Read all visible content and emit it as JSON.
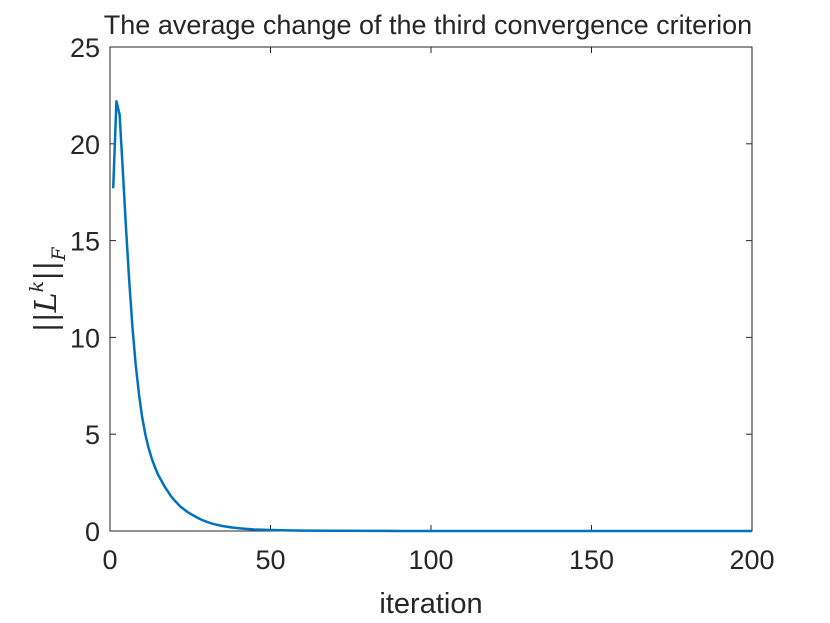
{
  "chart_data": {
    "type": "line",
    "title": "The average change of the third convergence criterion",
    "xlabel": "iteration",
    "ylabel": {
      "norm_open": "||",
      "base": "L",
      "superscript": "k",
      "norm_close": "||",
      "subscript": "F"
    },
    "xlim": [
      0,
      200
    ],
    "ylim": [
      0,
      25
    ],
    "xticks": [
      0,
      50,
      100,
      150,
      200
    ],
    "yticks": [
      0,
      5,
      10,
      15,
      20,
      25
    ],
    "grid": false,
    "line_color": "#0072BD",
    "series": [
      {
        "x": [
          1,
          2,
          3,
          4,
          5,
          6,
          7,
          8,
          9,
          10,
          11,
          12,
          13,
          14,
          15,
          16,
          17,
          18,
          19,
          20,
          22,
          24,
          26,
          28,
          30,
          32,
          35,
          38,
          41,
          45,
          50,
          55,
          60,
          70,
          80,
          90,
          100,
          120,
          150,
          200
        ],
        "y": [
          17.7,
          22.2,
          21.5,
          18.6,
          15.6,
          12.9,
          10.5,
          8.6,
          7.1,
          5.9,
          5.0,
          4.3,
          3.75,
          3.3,
          2.9,
          2.6,
          2.3,
          2.05,
          1.8,
          1.6,
          1.25,
          1.0,
          0.8,
          0.62,
          0.48,
          0.37,
          0.26,
          0.18,
          0.13,
          0.08,
          0.05,
          0.03,
          0.02,
          0.01,
          0.005,
          0.003,
          0.002,
          0.001,
          0.0005,
          0.0
        ]
      }
    ]
  }
}
